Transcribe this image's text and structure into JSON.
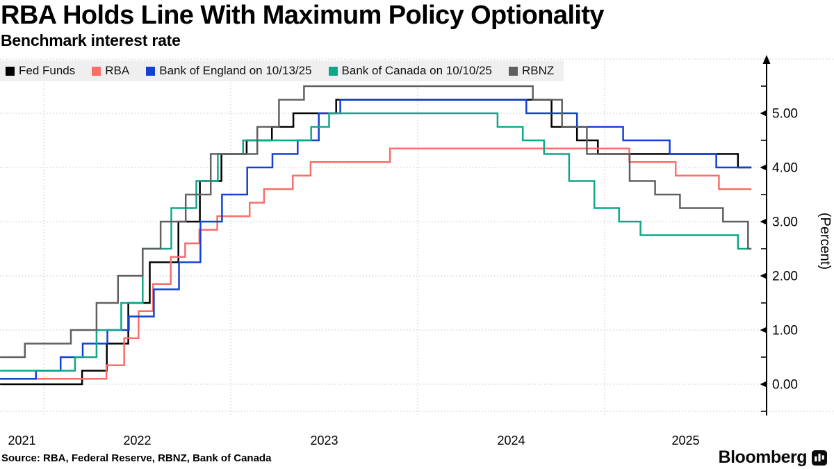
{
  "header": {
    "title": "RBA Holds Line With Maximum Policy Optionality",
    "subtitle": "Benchmark interest rate"
  },
  "legend": {
    "background": "#efefef",
    "items": [
      {
        "label": "Fed Funds",
        "slug": "fed-funds",
        "color": "#000000"
      },
      {
        "label": "RBA",
        "slug": "rba",
        "color": "#f96e69"
      },
      {
        "label": "Bank of England on 10/13/25",
        "slug": "bank-of-england",
        "color": "#1241d3"
      },
      {
        "label": "Bank of Canada on 10/10/25",
        "slug": "bank-of-canada",
        "color": "#0fa78a"
      },
      {
        "label": "RBNZ",
        "slug": "rbnz",
        "color": "#606060"
      }
    ]
  },
  "chart_data": {
    "type": "line",
    "step": true,
    "title": "RBA Holds Line With Maximum Policy Optionality",
    "subtitle": "Benchmark interest rate",
    "ylabel": "(Percent)",
    "grid": "dotted",
    "legend_position": "top-left",
    "ylim": [
      -0.5,
      6.0
    ],
    "y_ticks": [
      {
        "label": "0.00",
        "value": 0
      },
      {
        "label": "1.00",
        "value": 1
      },
      {
        "label": "2.00",
        "value": 2
      },
      {
        "label": "3.00",
        "value": 3
      },
      {
        "label": "4.00",
        "value": 4
      },
      {
        "label": "5.00",
        "value": 5
      }
    ],
    "y_minor_tick_step": 0.5,
    "xlim_decimal_years": [
      2021.766,
      2025.866
    ],
    "x_ticks": [
      {
        "label": "2021",
        "year": 2021
      },
      {
        "label": "2022",
        "year": 2022
      },
      {
        "label": "2023",
        "year": 2023
      },
      {
        "label": "2024",
        "year": 2024
      },
      {
        "label": "2025",
        "year": 2025
      }
    ],
    "x_gridline_years": [
      2022,
      2023,
      2024,
      2025
    ],
    "series": [
      {
        "name": "Fed Funds",
        "slug": "fed-funds",
        "color": "#000000",
        "end": 2025.785,
        "points": [
          [
            2021.766,
            0.0
          ],
          [
            2022.205,
            0.25
          ],
          [
            2022.337,
            0.75
          ],
          [
            2022.452,
            1.5
          ],
          [
            2022.567,
            2.25
          ],
          [
            2022.72,
            3.0
          ],
          [
            2022.835,
            3.75
          ],
          [
            2022.95,
            4.25
          ],
          [
            2023.085,
            4.5
          ],
          [
            2023.22,
            4.75
          ],
          [
            2023.335,
            5.0
          ],
          [
            2023.564,
            5.25
          ],
          [
            2024.716,
            4.75
          ],
          [
            2024.852,
            4.5
          ],
          [
            2024.964,
            4.25
          ],
          [
            2025.713,
            4.0
          ]
        ]
      },
      {
        "name": "RBA",
        "slug": "rba",
        "color": "#f96e69",
        "end": 2025.785,
        "points": [
          [
            2021.766,
            0.1
          ],
          [
            2022.335,
            0.35
          ],
          [
            2022.43,
            0.85
          ],
          [
            2022.507,
            1.35
          ],
          [
            2022.584,
            1.85
          ],
          [
            2022.679,
            2.35
          ],
          [
            2022.756,
            2.6
          ],
          [
            2022.832,
            2.85
          ],
          [
            2022.928,
            3.1
          ],
          [
            2023.101,
            3.35
          ],
          [
            2023.178,
            3.6
          ],
          [
            2023.332,
            3.85
          ],
          [
            2023.427,
            4.1
          ],
          [
            2023.852,
            4.35
          ],
          [
            2025.132,
            4.1
          ],
          [
            2025.38,
            3.85
          ],
          [
            2025.611,
            3.6
          ]
        ]
      },
      {
        "name": "Bank of England on 10/13/25",
        "slug": "bank-of-england",
        "color": "#1241d3",
        "end": 2025.783,
        "points": [
          [
            2021.766,
            0.1
          ],
          [
            2021.958,
            0.25
          ],
          [
            2022.09,
            0.5
          ],
          [
            2022.208,
            0.75
          ],
          [
            2022.34,
            1.0
          ],
          [
            2022.455,
            1.25
          ],
          [
            2022.589,
            1.75
          ],
          [
            2022.723,
            2.25
          ],
          [
            2022.838,
            3.0
          ],
          [
            2022.953,
            3.5
          ],
          [
            2023.088,
            4.0
          ],
          [
            2023.223,
            4.25
          ],
          [
            2023.358,
            4.5
          ],
          [
            2023.471,
            5.0
          ],
          [
            2023.586,
            5.25
          ],
          [
            2024.581,
            5.0
          ],
          [
            2024.852,
            4.75
          ],
          [
            2025.099,
            4.5
          ],
          [
            2025.348,
            4.25
          ],
          [
            2025.597,
            4.0
          ]
        ]
      },
      {
        "name": "Bank of Canada on 10/10/25",
        "slug": "bank-of-canada",
        "color": "#0fa78a",
        "end": 2025.775,
        "points": [
          [
            2021.766,
            0.25
          ],
          [
            2022.167,
            0.5
          ],
          [
            2022.282,
            1.0
          ],
          [
            2022.414,
            1.5
          ],
          [
            2022.529,
            2.5
          ],
          [
            2022.682,
            3.25
          ],
          [
            2022.816,
            3.75
          ],
          [
            2022.931,
            4.25
          ],
          [
            2023.066,
            4.5
          ],
          [
            2023.43,
            4.75
          ],
          [
            2023.526,
            5.0
          ],
          [
            2024.427,
            4.75
          ],
          [
            2024.562,
            4.5
          ],
          [
            2024.676,
            4.25
          ],
          [
            2024.81,
            3.75
          ],
          [
            2024.945,
            3.25
          ],
          [
            2025.077,
            3.0
          ],
          [
            2025.192,
            2.75
          ],
          [
            2025.713,
            2.5
          ]
        ]
      },
      {
        "name": "RBNZ",
        "slug": "rbnz",
        "color": "#606060",
        "end": 2025.785,
        "points": [
          [
            2021.766,
            0.5
          ],
          [
            2021.899,
            0.75
          ],
          [
            2022.145,
            1.0
          ],
          [
            2022.282,
            1.5
          ],
          [
            2022.397,
            2.0
          ],
          [
            2022.529,
            2.5
          ],
          [
            2022.625,
            3.0
          ],
          [
            2022.759,
            3.5
          ],
          [
            2022.893,
            4.25
          ],
          [
            2023.142,
            4.75
          ],
          [
            2023.258,
            5.25
          ],
          [
            2023.392,
            5.5
          ],
          [
            2024.616,
            5.25
          ],
          [
            2024.772,
            4.75
          ],
          [
            2024.905,
            4.25
          ],
          [
            2025.134,
            3.75
          ],
          [
            2025.27,
            3.5
          ],
          [
            2025.403,
            3.25
          ],
          [
            2025.633,
            3.0
          ],
          [
            2025.767,
            2.5
          ]
        ]
      }
    ]
  },
  "footer": {
    "source": "Source: RBA, Federal Reserve, RBNZ, Bank of Canada",
    "brand": "Bloomberg"
  },
  "colors": {
    "grid": "#c4c4c4",
    "axis": "#000000",
    "legend_background": "#efefef",
    "background": "#ffffff"
  }
}
